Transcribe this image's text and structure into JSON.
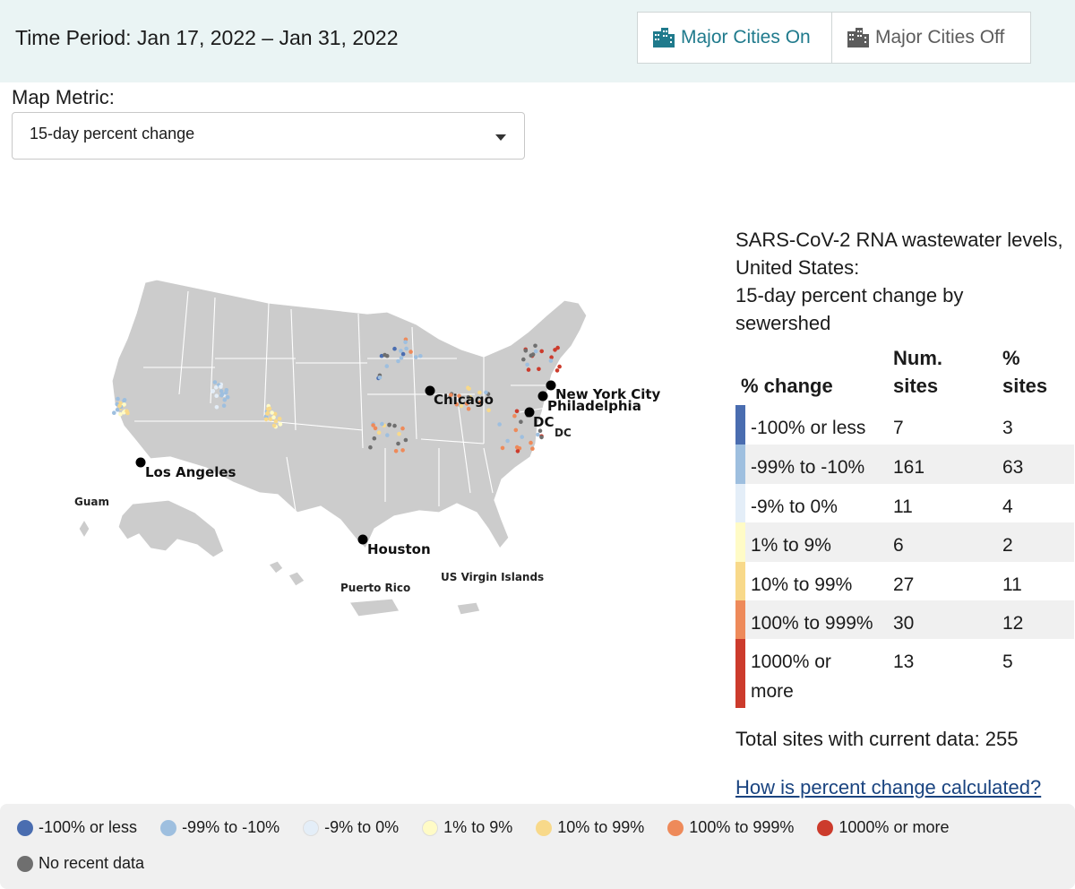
{
  "header": {
    "time_period": "Time Period: Jan 17, 2022 – Jan 31, 2022",
    "toggle_on_label": "Major Cities On",
    "toggle_off_label": "Major Cities Off"
  },
  "metric": {
    "label": "Map Metric:",
    "selected": "15-day percent change"
  },
  "map": {
    "cities": [
      "Chicago",
      "New York City",
      "Philadelphia",
      "DC",
      "Los Angeles",
      "Houston"
    ],
    "dc_small_label": "DC",
    "territories": [
      "Guam",
      "Puerto Rico",
      "US Virgin Islands"
    ]
  },
  "panel": {
    "title_line1": "SARS-CoV-2 RNA wastewater levels,",
    "title_line2": "United States:",
    "title_line3": "15-day percent change by",
    "title_line4": "sewershed",
    "col_change": "% change",
    "col_num_line1": "Num.",
    "col_num_line2": "sites",
    "col_pct_line1": "%",
    "col_pct_line2": "sites",
    "rows": [
      {
        "label": "-100% or less",
        "num": "7",
        "pct": "3",
        "color": "#4a6db0"
      },
      {
        "label": "-99% to -10%",
        "num": "161",
        "pct": "63",
        "color": "#9ebfdf"
      },
      {
        "label": "-9% to 0%",
        "num": "11",
        "pct": "4",
        "color": "#e4eef8"
      },
      {
        "label": "1% to 9%",
        "num": "6",
        "pct": "2",
        "color": "#fffbc6"
      },
      {
        "label": "10% to 99%",
        "num": "27",
        "pct": "11",
        "color": "#f8d98a"
      },
      {
        "label": "100% to 999%",
        "num": "30",
        "pct": "12",
        "color": "#ee8a5a"
      },
      {
        "label": "1000% or more",
        "num": "13",
        "pct": "5",
        "color": "#cc3b2c"
      }
    ],
    "total": "Total sites with current data: 255",
    "link": "How is percent change calculated?"
  },
  "bottom_legend": {
    "items": [
      {
        "label": "-100% or less",
        "color": "#4a6db0"
      },
      {
        "label": "-99% to -10%",
        "color": "#9ebfdf"
      },
      {
        "label": "-9% to 0%",
        "color": "#e4eef8"
      },
      {
        "label": "1% to 9%",
        "color": "#fffbc6"
      },
      {
        "label": "10% to 99%",
        "color": "#f8d98a"
      },
      {
        "label": "100% to 999%",
        "color": "#ee8a5a"
      },
      {
        "label": "1000% or more",
        "color": "#cc3b2c"
      }
    ],
    "no_data": {
      "label": "No recent data",
      "color": "#6f6f6f"
    }
  }
}
